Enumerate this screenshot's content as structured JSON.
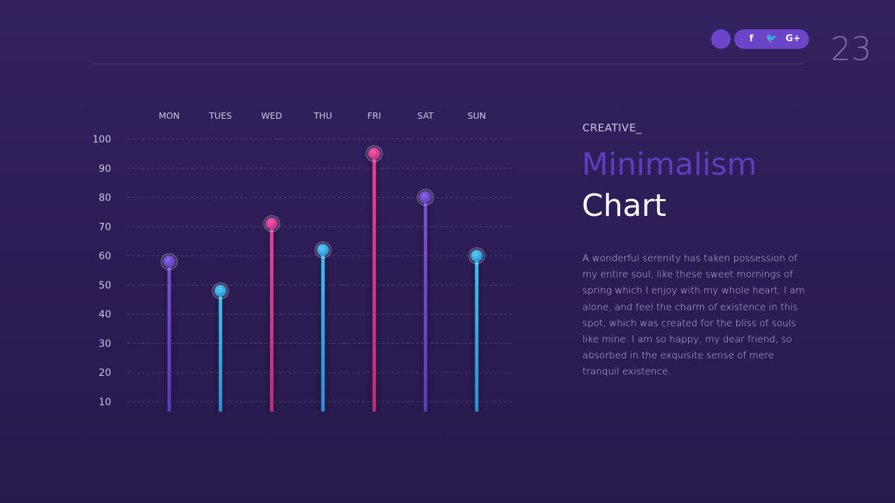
{
  "page_number": "23",
  "social": {
    "icons": [
      {
        "icon": "facebook-icon",
        "glyph": "f"
      },
      {
        "icon": "twitter-icon",
        "glyph": "🐦"
      },
      {
        "icon": "google-plus-icon",
        "glyph": "G+"
      }
    ]
  },
  "text": {
    "eyebrow": "CREATIVE_",
    "title_accent": "Minimalism",
    "title_main": "Chart",
    "body": "A wonderful serenity has taken possession of my entire soul, like these sweet mornings of spring which I enjoy with my whole heart. I am alone, and feel the charm of existence in this spot, which was created for the bliss of souls like mine. I am so happy, my dear friend, so absorbed in the exquisite sense of mere tranquil existence."
  },
  "colors": {
    "purple": "#6a45c9",
    "blue": "#2aa8e0",
    "pink": "#d6348e",
    "accent_title": "#5b3fc0"
  },
  "chart_data": {
    "type": "lollipop",
    "categories": [
      "MON",
      "TUES",
      "WED",
      "THU",
      "FRI",
      "SAT",
      "SUN"
    ],
    "values": [
      58,
      48,
      71,
      62,
      95,
      80,
      60
    ],
    "series_colors": [
      "purple",
      "blue",
      "pink",
      "blue",
      "pink",
      "purple",
      "blue"
    ],
    "y_ticks": [
      100,
      90,
      80,
      70,
      60,
      50,
      40,
      30,
      20,
      10
    ],
    "ylim": [
      10,
      100
    ],
    "category_axis": "top",
    "grid": "dashed-horizontal"
  }
}
